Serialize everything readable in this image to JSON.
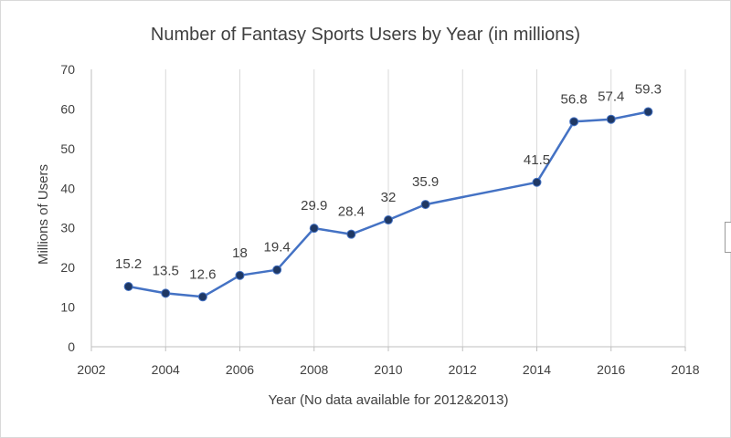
{
  "chart_data": {
    "type": "scatter",
    "title": "Number of Fantasy Sports Users by Year (in millions)",
    "xlabel": "Year (No data available for 2012&2013)",
    "ylabel": "Millions of Users",
    "x": [
      2003,
      2004,
      2005,
      2006,
      2007,
      2008,
      2009,
      2010,
      2011,
      2014,
      2015,
      2016,
      2017
    ],
    "y": [
      15.2,
      13.5,
      12.6,
      18,
      19.4,
      29.9,
      28.4,
      32,
      35.9,
      41.5,
      56.8,
      57.4,
      59.3
    ],
    "data_labels": [
      "15.2",
      "13.5",
      "12.6",
      "18",
      "19.4",
      "29.9",
      "28.4",
      "32",
      "35.9",
      "41.5",
      "56.8",
      "57.4",
      "59.3"
    ],
    "xlim": [
      2002,
      2018
    ],
    "ylim": [
      0,
      70
    ],
    "x_ticks": [
      "2002",
      "2004",
      "2006",
      "2008",
      "2010",
      "2012",
      "2014",
      "2016",
      "2018"
    ],
    "y_ticks": [
      "0",
      "10",
      "20",
      "30",
      "40",
      "50",
      "60",
      "70"
    ],
    "grid": "vertical",
    "legend": "none",
    "colors": {
      "line": "#4472c4",
      "marker": "#1f3864",
      "grid": "#d9d9d9",
      "text": "#404040"
    }
  }
}
